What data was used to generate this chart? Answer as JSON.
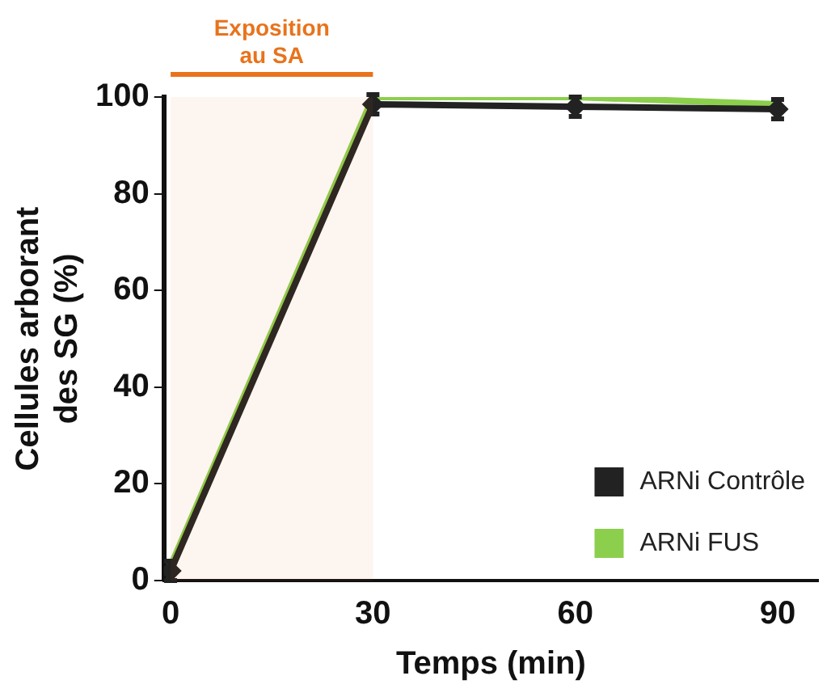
{
  "chart_data": {
    "type": "line",
    "xlabel": "Temps (min)",
    "ylabel": "Cellules arborant\ndes SG (%)",
    "x": [
      0,
      30,
      60,
      90
    ],
    "xlim": [
      -1,
      96
    ],
    "xticks": [
      0,
      30,
      60,
      90
    ],
    "ylim": [
      0,
      100
    ],
    "yticks": [
      0,
      20,
      40,
      60,
      80,
      100
    ],
    "series": [
      {
        "name": "ARNi Contrôle",
        "color": "#222222",
        "values": [
          2,
          98.5,
          98,
          97.5
        ],
        "marker": "diamond",
        "errors": [
          2,
          2,
          2,
          2
        ]
      },
      {
        "name": "ARNi FUS",
        "color": "#8ccf4d",
        "values": [
          3,
          100,
          100,
          98.5
        ]
      }
    ],
    "bands": [
      {
        "axis": "x",
        "from": 0,
        "to": 30,
        "label": "Exposition\nau SA",
        "color": "#e8731c"
      }
    ],
    "legend": "bottom right",
    "grid": false,
    "line_style": "solid"
  }
}
